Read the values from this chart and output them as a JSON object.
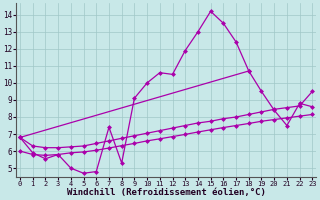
{
  "bg": "#c8e8e8",
  "grid_color": "#a0c8c8",
  "lc": "#aa00aa",
  "lw": 0.9,
  "ms": 2.5,
  "xlim": [
    -0.3,
    23.3
  ],
  "ylim": [
    4.5,
    14.7
  ],
  "yticks": [
    5,
    6,
    7,
    8,
    9,
    10,
    11,
    12,
    13,
    14
  ],
  "xticks": [
    0,
    1,
    2,
    3,
    4,
    5,
    6,
    7,
    8,
    9,
    10,
    11,
    12,
    13,
    14,
    15,
    16,
    17,
    18,
    19,
    20,
    21,
    22,
    23
  ],
  "xlabel": "Windchill (Refroidissement éolien,°C)",
  "curve1_x": [
    0,
    1,
    2,
    3,
    4,
    5,
    6,
    7,
    8,
    9,
    10,
    11,
    12,
    13,
    14,
    15,
    16,
    17,
    18
  ],
  "curve1_y": [
    6.8,
    5.9,
    5.55,
    5.8,
    5.0,
    4.7,
    4.8,
    7.4,
    5.3,
    9.1,
    10.0,
    10.6,
    10.5,
    11.9,
    13.0,
    14.2,
    13.5,
    12.4,
    10.7
  ],
  "curve2_x": [
    0,
    18,
    19,
    20,
    21,
    22,
    23
  ],
  "curve2_y": [
    6.8,
    10.7,
    9.5,
    8.4,
    7.5,
    8.8,
    8.6
  ],
  "curve3_x": [
    0,
    1,
    2,
    3,
    4,
    5,
    6,
    7,
    8,
    9,
    10,
    11,
    12,
    13,
    14,
    15,
    16,
    17,
    18,
    19,
    20,
    21,
    22,
    23
  ],
  "curve3_y": [
    6.8,
    6.3,
    6.2,
    6.2,
    6.25,
    6.3,
    6.45,
    6.6,
    6.75,
    6.9,
    7.05,
    7.2,
    7.35,
    7.5,
    7.65,
    7.75,
    7.9,
    8.0,
    8.15,
    8.3,
    8.45,
    8.55,
    8.65,
    9.5
  ],
  "curve4_x": [
    0,
    1,
    2,
    3,
    4,
    5,
    6,
    7,
    8,
    9,
    10,
    11,
    12,
    13,
    14,
    15,
    16,
    17,
    18,
    19,
    20,
    21,
    22,
    23
  ],
  "curve4_y": [
    6.0,
    5.8,
    5.75,
    5.8,
    5.9,
    5.95,
    6.05,
    6.18,
    6.32,
    6.45,
    6.6,
    6.72,
    6.85,
    6.98,
    7.12,
    7.25,
    7.38,
    7.5,
    7.62,
    7.75,
    7.85,
    7.95,
    8.05,
    8.15
  ]
}
